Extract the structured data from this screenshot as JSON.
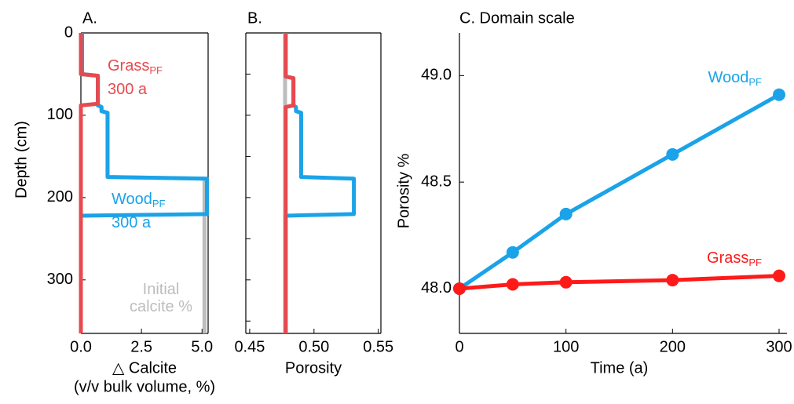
{
  "chart_data": [
    {
      "type": "line",
      "title": "A.",
      "ylabel": "Depth (cm)",
      "xlabel": [
        "△ Calcite",
        "(v/v bulk volume, %)"
      ],
      "xlim": [
        0,
        5.25
      ],
      "ylim": [
        0,
        365
      ],
      "y_inverted": true,
      "frame": true,
      "show_ytick_labels": true,
      "xticks": [
        {
          "value": 0,
          "label": "0.0"
        },
        {
          "value": 2.5,
          "label": "2.5"
        },
        {
          "value": 5,
          "label": "5.0"
        }
      ],
      "yticks": [
        0,
        100,
        200,
        300
      ],
      "series": [
        {
          "color": "#bdbdbd",
          "x": [
            0.05,
            0.05,
            0.7,
            0.7,
            0.85,
            0.85,
            1.1,
            1.1,
            5.1,
            5.1
          ],
          "y": [
            0,
            50,
            52,
            88,
            90,
            95,
            97,
            175,
            177,
            365
          ]
        },
        {
          "color": "#1aa3e8",
          "x": [
            0.05,
            0.05,
            0.7,
            0.7,
            0.85,
            0.85,
            1.1,
            1.1,
            5.2,
            5.2,
            0,
            0
          ],
          "y": [
            0,
            50,
            52,
            88,
            90,
            95,
            97,
            175,
            177,
            220,
            222,
            365
          ]
        },
        {
          "color": "#e8494e",
          "x": [
            0,
            0,
            0.7,
            0.7,
            0,
            0
          ],
          "y": [
            0,
            50,
            52,
            86,
            88,
            365
          ]
        }
      ],
      "annotations": [
        {
          "text": "Grass",
          "sub": "PF",
          "color": "#e8494e"
        },
        {
          "text": "300 a",
          "color": "#e8494e"
        },
        {
          "text": "Wood",
          "sub": "PF",
          "color": "#1aa3e8"
        },
        {
          "text": "300 a",
          "color": "#1aa3e8"
        },
        {
          "text": "Initial",
          "color": "#bdbdbd"
        },
        {
          "text": "calcite %",
          "color": "#bdbdbd"
        }
      ]
    },
    {
      "type": "line",
      "title": "B.",
      "xlabel": [
        "Porosity"
      ],
      "xlim": [
        0.447,
        0.552
      ],
      "ylim": [
        0,
        365
      ],
      "y_inverted": true,
      "frame": true,
      "show_ytick_labels": false,
      "xticks": [
        0.45,
        {
          "value": 0.5,
          "label": "0.50"
        },
        0.55
      ],
      "yticks": [
        0,
        50,
        100,
        150,
        200,
        250,
        300,
        350
      ],
      "series": [
        {
          "color": "#bdbdbd",
          "x": [
            0.4775,
            0.4775
          ],
          "y": [
            0,
            365
          ]
        },
        {
          "color": "#1aa3e8",
          "x": [
            0.478,
            0.478,
            0.484,
            0.484,
            0.486,
            0.486,
            0.49,
            0.49,
            0.531,
            0.531,
            0.478,
            0.478
          ],
          "y": [
            0,
            53,
            55,
            88,
            90,
            95,
            97,
            175,
            177,
            220,
            222,
            365
          ]
        },
        {
          "color": "#e8494e",
          "x": [
            0.478,
            0.478,
            0.484,
            0.484,
            0.478,
            0.478
          ],
          "y": [
            0,
            53,
            55,
            88,
            90,
            365
          ]
        }
      ]
    },
    {
      "type": "line",
      "title": "C. Domain scale",
      "ylabel": "Porosity %",
      "xlabel": [
        "Time (a)"
      ],
      "xlim": [
        0,
        300
      ],
      "ylim": [
        47.79,
        49.2
      ],
      "y_inverted": false,
      "frame": false,
      "markers": true,
      "show_ytick_labels": true,
      "xticks": [
        0,
        100,
        200,
        300
      ],
      "yticks": [
        {
          "value": 48,
          "label": "48.0"
        },
        48.5,
        {
          "value": 49,
          "label": "49.0"
        }
      ],
      "x": [
        0,
        50,
        100,
        200,
        300
      ],
      "series": [
        {
          "name": "Wood",
          "name_sub": "PF",
          "color": "#1aa3e8",
          "values": [
            48.0,
            48.17,
            48.35,
            48.63,
            48.91
          ]
        },
        {
          "name": "Grass",
          "name_sub": "PF",
          "color": "#ff1a1a",
          "values": [
            48.0,
            48.02,
            48.03,
            48.04,
            48.06
          ]
        }
      ]
    }
  ]
}
